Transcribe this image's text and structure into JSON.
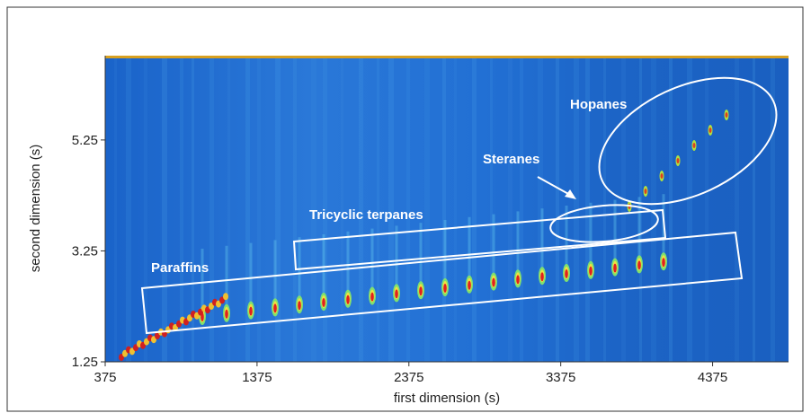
{
  "chart_data": {
    "type": "heatmap",
    "x_label": "first dimension (s)",
    "y_label": "second dimension (s)",
    "xlim": [
      375,
      4875
    ],
    "xticks": [
      375,
      1375,
      2375,
      3375,
      4375
    ],
    "ylim": [
      1.25,
      6.77
    ],
    "yticks": [
      1.25,
      3.25,
      5.25
    ],
    "annotations": [
      "Paraffins",
      "Tricyclic terpanes",
      "Steranes",
      "Hopanes"
    ]
  }
}
